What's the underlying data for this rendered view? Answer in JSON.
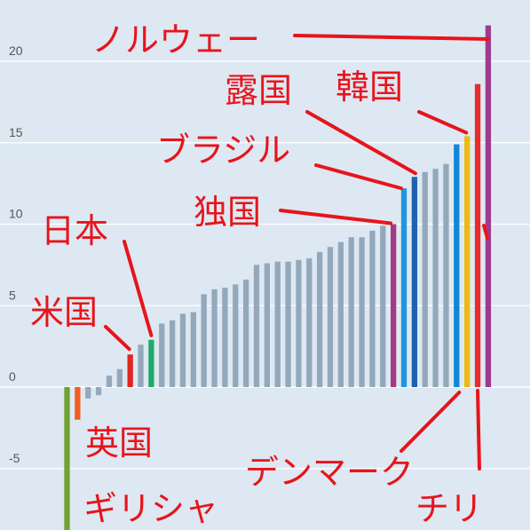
{
  "chart_data": {
    "type": "bar",
    "ylim": [
      -8.7,
      23.3
    ],
    "yticks": [
      "20",
      "15",
      "10",
      "5",
      "0",
      "-5"
    ],
    "grid": true,
    "colors": {
      "background": "#dde8f3",
      "default_bar": "#93a9bb",
      "greece": "#72a232",
      "uk": "#f25c1e",
      "usa": "#e22622",
      "japan": "#23a86a",
      "germany": "#a43a82",
      "brazil": "#1e96e0",
      "russia": "#1d62ae",
      "denmark": "#0f86d6",
      "korea": "#ecba15",
      "chile": "#e82a2a",
      "norway": "#9b3b8c",
      "annotation": "#e8141b"
    },
    "bars": [
      {
        "value": -8.8,
        "label": "ギリシャ",
        "color_key": "greece"
      },
      {
        "value": -2.0,
        "label": "英国",
        "color_key": "uk"
      },
      {
        "value": -0.7,
        "color_key": "default_bar"
      },
      {
        "value": -0.5,
        "color_key": "default_bar"
      },
      {
        "value": 0.7,
        "color_key": "default_bar"
      },
      {
        "value": 1.1,
        "color_key": "default_bar"
      },
      {
        "value": 2.0,
        "label": "米国",
        "color_key": "usa"
      },
      {
        "value": 2.6,
        "color_key": "default_bar"
      },
      {
        "value": 2.9,
        "label": "日本",
        "color_key": "japan"
      },
      {
        "value": 3.9,
        "color_key": "default_bar"
      },
      {
        "value": 4.1,
        "color_key": "default_bar"
      },
      {
        "value": 4.5,
        "color_key": "default_bar"
      },
      {
        "value": 4.6,
        "color_key": "default_bar"
      },
      {
        "value": 5.7,
        "color_key": "default_bar"
      },
      {
        "value": 6.0,
        "color_key": "default_bar"
      },
      {
        "value": 6.1,
        "color_key": "default_bar"
      },
      {
        "value": 6.3,
        "color_key": "default_bar"
      },
      {
        "value": 6.6,
        "color_key": "default_bar"
      },
      {
        "value": 7.5,
        "color_key": "default_bar"
      },
      {
        "value": 7.6,
        "color_key": "default_bar"
      },
      {
        "value": 7.7,
        "color_key": "default_bar"
      },
      {
        "value": 7.7,
        "color_key": "default_bar"
      },
      {
        "value": 7.8,
        "color_key": "default_bar"
      },
      {
        "value": 7.9,
        "color_key": "default_bar"
      },
      {
        "value": 8.3,
        "color_key": "default_bar"
      },
      {
        "value": 8.6,
        "color_key": "default_bar"
      },
      {
        "value": 8.9,
        "color_key": "default_bar"
      },
      {
        "value": 9.2,
        "color_key": "default_bar"
      },
      {
        "value": 9.2,
        "color_key": "default_bar"
      },
      {
        "value": 9.6,
        "color_key": "default_bar"
      },
      {
        "value": 9.9,
        "color_key": "default_bar"
      },
      {
        "value": 10.0,
        "label": "独国",
        "color_key": "germany"
      },
      {
        "value": 12.2,
        "label": "ブラジル",
        "color_key": "brazil"
      },
      {
        "value": 12.9,
        "label": "露国",
        "color_key": "russia"
      },
      {
        "value": 13.2,
        "color_key": "default_bar"
      },
      {
        "value": 13.4,
        "color_key": "default_bar"
      },
      {
        "value": 13.7,
        "color_key": "default_bar"
      },
      {
        "value": 14.9,
        "label": "デンマーク",
        "color_key": "denmark"
      },
      {
        "value": 15.4,
        "label": "韓国",
        "color_key": "korea"
      },
      {
        "value": 18.6,
        "label": "チリ",
        "color_key": "chile"
      },
      {
        "value": 22.2,
        "label": "ノルウェー",
        "color_key": "norway"
      }
    ]
  }
}
